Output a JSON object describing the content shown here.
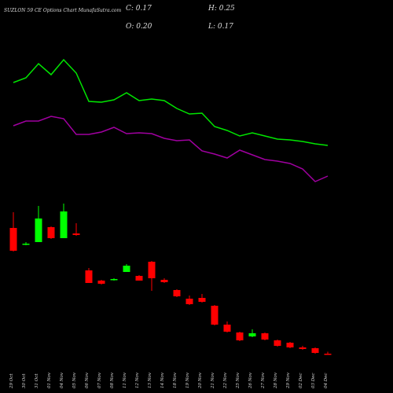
{
  "chart_data": {
    "type": "candlestick",
    "title": "SUZLON 59 CE Options Chart MunafaSutra.com",
    "last": {
      "values": [
        0.17,
        0.25,
        0.2,
        0.17
      ],
      "value_labels": [
        "C: 0.17",
        "H: 0.25",
        "O: 0.20",
        "L: 0.17"
      ]
    },
    "categories": [
      "29 Oct",
      "30 Oct",
      "31 Oct",
      "01 Nov",
      "04 Nov",
      "05 Nov",
      "06 Nov",
      "07 Nov",
      "08 Nov",
      "11 Nov",
      "12 Nov",
      "13 Nov",
      "14 Nov",
      "18 Nov",
      "19 Nov",
      "20 Nov",
      "21 Nov",
      "22 Nov",
      "25 Nov",
      "26 Nov",
      "27 Nov",
      "28 Nov",
      "29 Nov",
      "02 Dec",
      "03 Dec",
      "04 Dec"
    ],
    "open": [
      3.4,
      2.98,
      3.04,
      3.42,
      3.14,
      3.26,
      2.32,
      2.06,
      2.08,
      2.28,
      2.18,
      2.54,
      2.08,
      1.82,
      1.6,
      1.62,
      1.42,
      0.94,
      0.74,
      0.64,
      0.72,
      0.54,
      0.48,
      0.36,
      0.34,
      0.2
    ],
    "high": [
      3.8,
      3.04,
      3.96,
      3.44,
      4.02,
      3.52,
      2.38,
      2.08,
      2.12,
      2.48,
      2.2,
      2.56,
      2.12,
      1.84,
      1.68,
      1.72,
      1.44,
      1.02,
      0.76,
      0.82,
      0.74,
      0.56,
      0.5,
      0.4,
      0.36,
      0.25
    ],
    "low": [
      2.8,
      2.96,
      3.04,
      3.12,
      3.14,
      3.2,
      2.0,
      1.96,
      2.06,
      2.28,
      2.06,
      1.8,
      2.0,
      1.64,
      1.44,
      1.5,
      0.92,
      0.74,
      0.52,
      0.62,
      0.54,
      0.38,
      0.34,
      0.3,
      0.2,
      0.17
    ],
    "close": [
      2.82,
      3.0,
      3.64,
      3.14,
      3.82,
      3.22,
      2.0,
      1.98,
      2.1,
      2.44,
      2.06,
      2.12,
      2.02,
      1.66,
      1.46,
      1.52,
      0.94,
      0.76,
      0.54,
      0.72,
      0.56,
      0.4,
      0.36,
      0.32,
      0.22,
      0.17
    ],
    "up_color": "#00ff00",
    "down_color": "#ff0000",
    "ylim": [
      0,
      4.4
    ],
    "series": [
      {
        "color": "#00e600",
        "axis": "y2",
        "values": [
          6.75,
          7.05,
          7.95,
          7.25,
          8.2,
          7.35,
          5.55,
          5.5,
          5.65,
          6.1,
          5.6,
          5.7,
          5.6,
          5.1,
          4.75,
          4.8,
          3.95,
          3.7,
          3.35,
          3.55,
          3.35,
          3.15,
          3.1,
          3.0,
          2.85,
          2.75
        ]
      },
      {
        "color": "#a000a0",
        "axis": "y2",
        "values": [
          4.0,
          4.3,
          4.3,
          4.6,
          4.45,
          3.45,
          3.45,
          3.6,
          3.9,
          3.5,
          3.55,
          3.5,
          3.2,
          3.05,
          3.1,
          2.4,
          2.2,
          1.95,
          2.45,
          2.15,
          1.85,
          1.75,
          1.6,
          1.25,
          0.45,
          0.8
        ]
      }
    ],
    "y2lim": [
      0,
      10
    ]
  }
}
